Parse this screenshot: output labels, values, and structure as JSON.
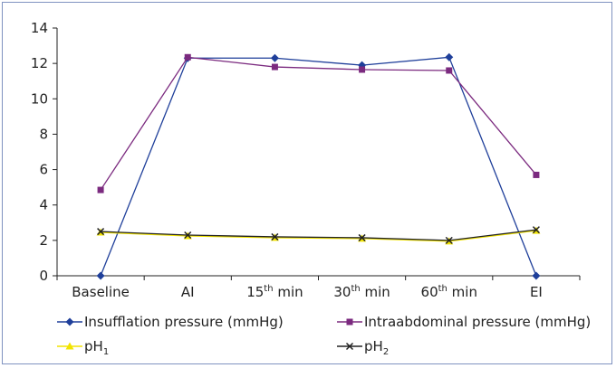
{
  "chart_data": {
    "type": "line",
    "categories": [
      {
        "base": "Baseline",
        "sup": ""
      },
      {
        "base": "AI",
        "sup": ""
      },
      {
        "base": "15",
        "sup": "th",
        "tail": " min"
      },
      {
        "base": "30",
        "sup": "th",
        "tail": " min"
      },
      {
        "base": "60",
        "sup": "th",
        "tail": " min"
      },
      {
        "base": "EI",
        "sup": ""
      }
    ],
    "ylim": [
      0,
      14
    ],
    "yticks": [
      0,
      2,
      4,
      6,
      8,
      10,
      12,
      14
    ],
    "grid": false,
    "series": [
      {
        "name": "Insufflation pressure (mmHg)",
        "name_base": "Insufflation pressure (mmHg)",
        "name_sub": "",
        "color": "#1f3f9a",
        "marker": "diamond",
        "values": [
          0,
          12.3,
          12.3,
          11.9,
          12.35,
          0
        ]
      },
      {
        "name": "Intraabdominal pressure (mmHg)",
        "name_base": "Intraabdominal pressure (mmHg)",
        "name_sub": "",
        "color": "#7b2a7f",
        "marker": "square",
        "values": [
          4.85,
          12.35,
          11.8,
          11.65,
          11.6,
          5.7
        ]
      },
      {
        "name": "pH1",
        "name_base": "pH",
        "name_sub": "1",
        "color": "#f2e400",
        "marker": "triangle",
        "values": [
          2.45,
          2.25,
          2.15,
          2.1,
          1.95,
          2.55
        ]
      },
      {
        "name": "pH2",
        "name_base": "pH",
        "name_sub": "2",
        "color": "#222222",
        "marker": "x",
        "values": [
          2.5,
          2.3,
          2.2,
          2.15,
          2.0,
          2.6
        ]
      }
    ],
    "legend_position": "bottom"
  }
}
